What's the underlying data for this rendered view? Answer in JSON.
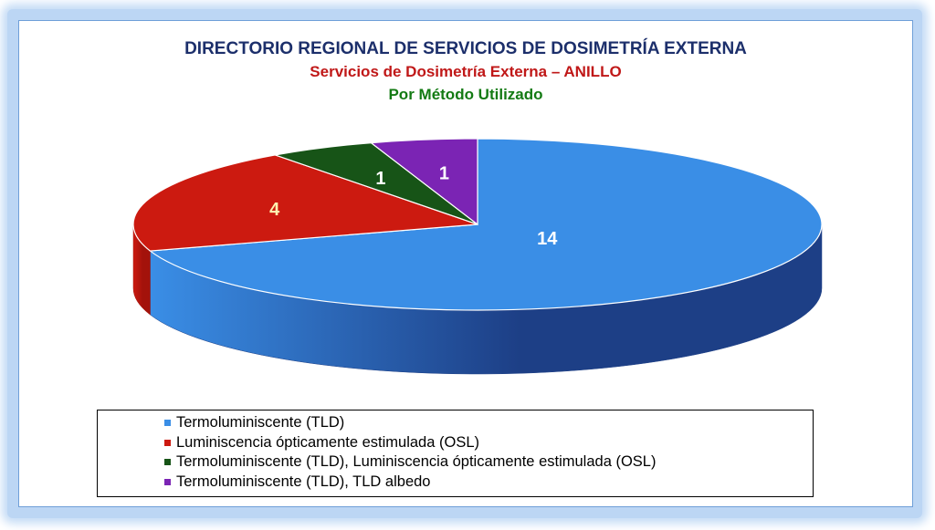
{
  "chart_data": {
    "type": "pie",
    "title": "DIRECTORIO REGIONAL DE SERVICIOS DE DOSIMETRÍA EXTERNA",
    "subtitle": "Servicios de Dosimetría Externa – ANILLO",
    "subtitle2": "Por Método Utilizado",
    "three_d": true,
    "legend_position": "bottom",
    "categories": [
      "Termoluminiscente (TLD)",
      "Luminiscencia ópticamente estimulada (OSL)",
      "Termoluminiscente (TLD), Luminiscencia ópticamente estimulada (OSL)",
      "Termoluminiscente (TLD), TLD albedo"
    ],
    "values": [
      14,
      4,
      1,
      1
    ],
    "data_labels": [
      "14",
      "4",
      "1",
      "1"
    ],
    "colors": [
      "#3a8ee6",
      "#cc1a10",
      "#175417",
      "#7b24b4"
    ],
    "side_colors": [
      "#1d3f86",
      "#a3120b",
      "#0f3a0f",
      "#561889"
    ],
    "label_colors": [
      "#ffffff",
      "#fff3b0",
      "#ffffff",
      "#ffffff"
    ]
  },
  "title_colors": [
    "#1c2f6b",
    "#c01818",
    "#137a13"
  ]
}
